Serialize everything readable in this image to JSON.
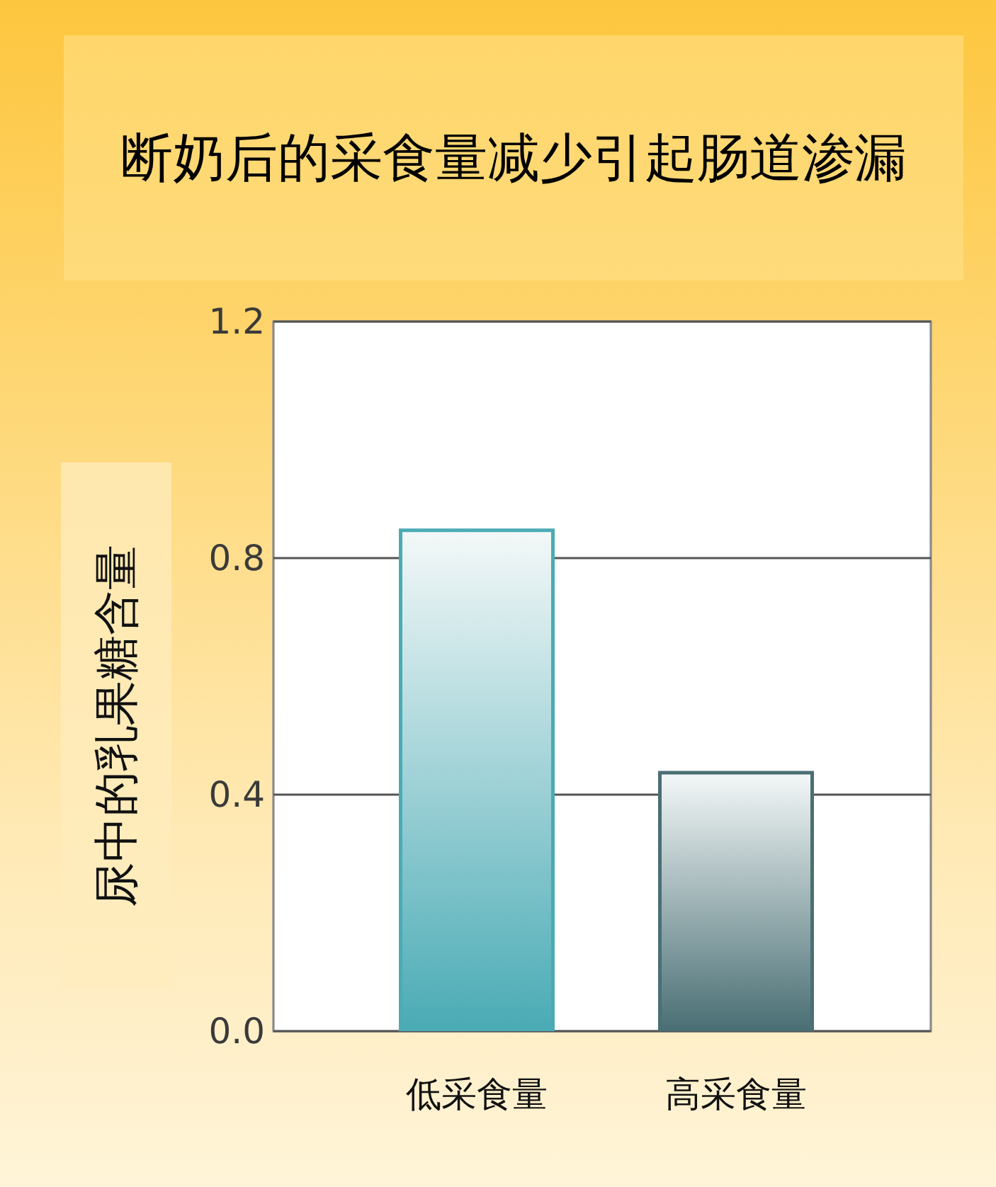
{
  "chart_data": {
    "type": "bar",
    "title": "断奶后的采食量减少引起肠道渗漏",
    "ylabel": "尿中的乳果糖含量",
    "categories": [
      "低采食量",
      "高采食量"
    ],
    "values": [
      0.85,
      0.44
    ],
    "colors": [
      "#4aabb5",
      "#4a6f74"
    ],
    "ylim": [
      0,
      1.2
    ],
    "yticks": [
      {
        "value": 0,
        "label": "0.0"
      },
      0.4,
      0.8,
      1.2
    ],
    "grid": "y"
  }
}
